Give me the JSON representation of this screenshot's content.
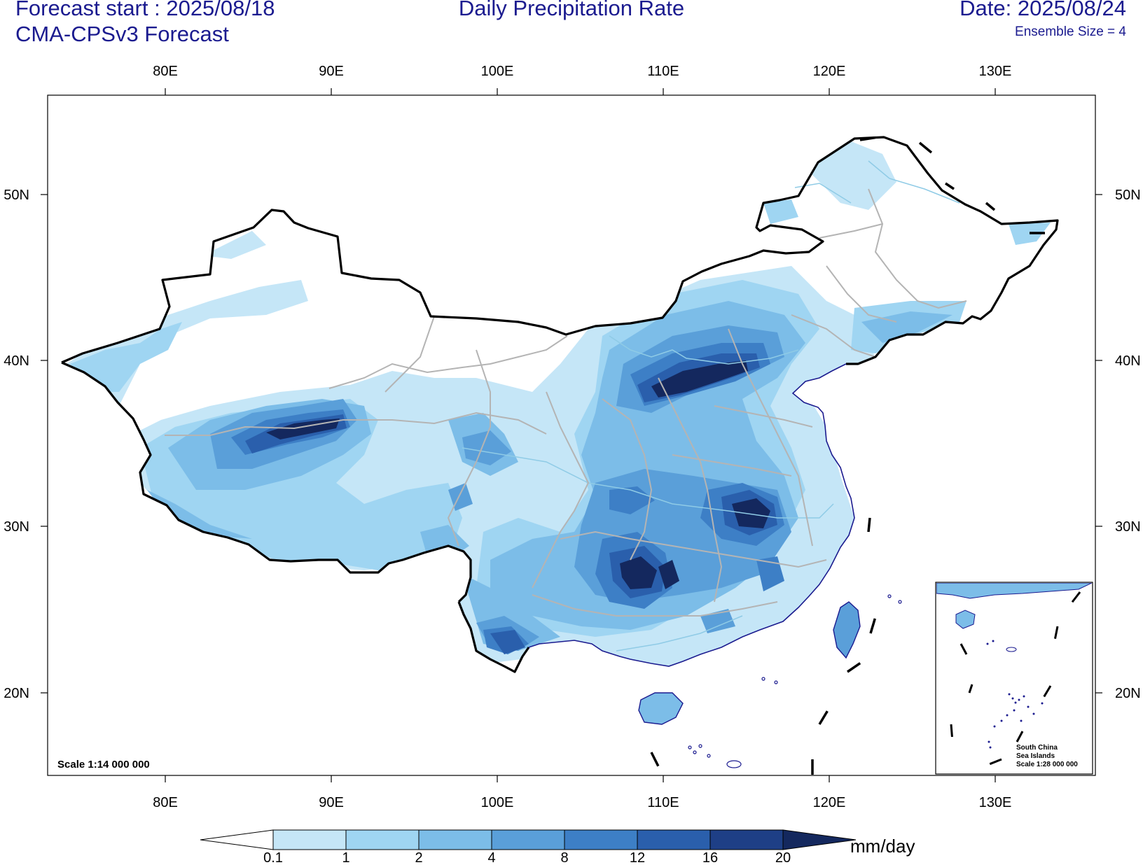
{
  "header": {
    "forecast_start": "Forecast start : 2025/08/18",
    "model": "CMA-CPSv3 Forecast",
    "title": "Daily Precipitation Rate",
    "date": "Date: 2025/08/24",
    "ensemble": "Ensemble Size = 4"
  },
  "map": {
    "lon_ticks": [
      "80E",
      "90E",
      "100E",
      "110E",
      "120E",
      "130E"
    ],
    "lat_ticks": [
      "20N",
      "30N",
      "40N",
      "50N"
    ],
    "scale_label": "Scale 1:14 000 000",
    "inset": {
      "line1": "South China",
      "line2": "Sea Islands",
      "line3": "Scale 1:28 000 000"
    }
  },
  "colorbar": {
    "levels": [
      "0.1",
      "1",
      "2",
      "4",
      "8",
      "12",
      "16",
      "20"
    ],
    "colors": [
      "#ffffff",
      "#c5e6f7",
      "#9fd5f2",
      "#7cbde8",
      "#5a9fd9",
      "#3d7fc6",
      "#2a5fac",
      "#1e3f86",
      "#14285e"
    ],
    "unit": "mm/day"
  },
  "colors": {
    "header_text": "#1b1b8f",
    "border": "#000000",
    "province_lines": "#b4b4b4",
    "rivers": "#8fcbe6"
  }
}
